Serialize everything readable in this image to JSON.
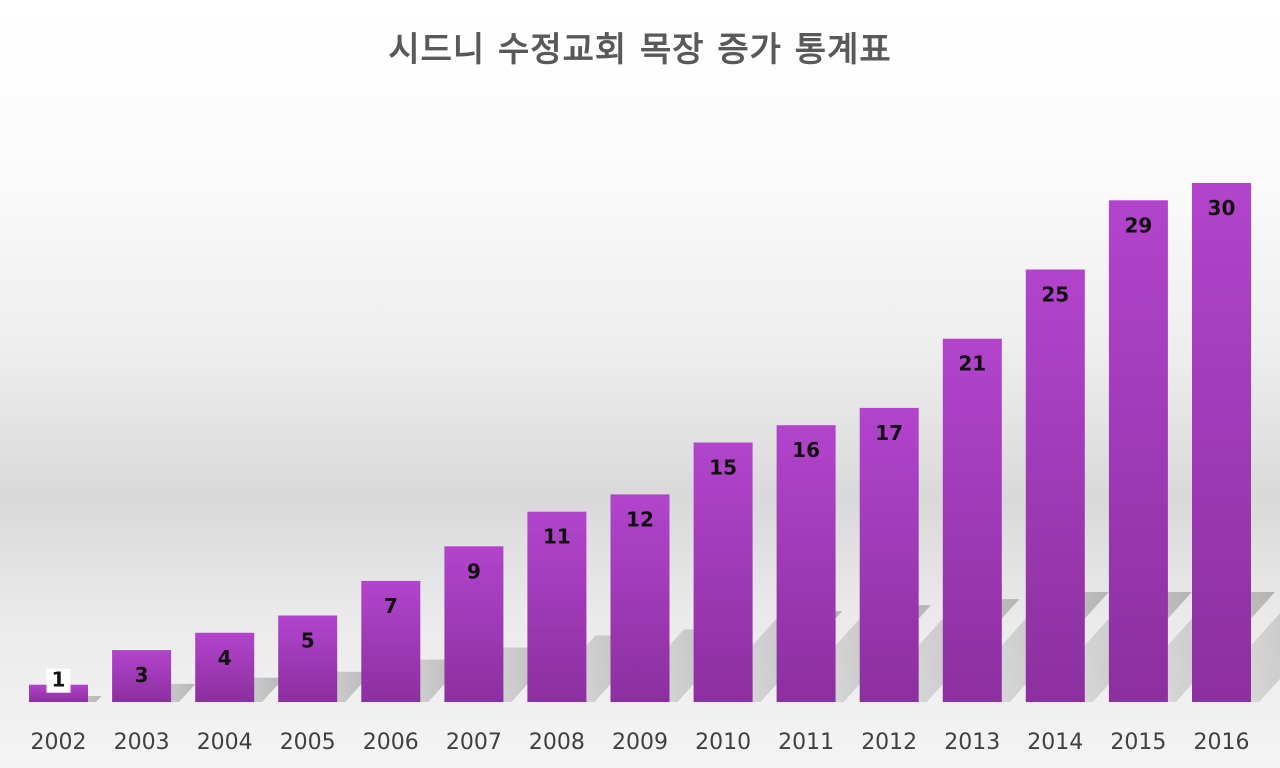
{
  "chart_data": {
    "type": "bar",
    "title": "시드니 수정교회 목장 증가 통계표",
    "categories": [
      "2002",
      "2003",
      "2004",
      "2005",
      "2006",
      "2007",
      "2008",
      "2009",
      "2010",
      "2011",
      "2012",
      "2013",
      "2014",
      "2015",
      "2016"
    ],
    "series": [
      {
        "values": [
          1,
          3,
          4,
          5,
          7,
          9,
          11,
          12,
          15,
          16,
          17,
          21,
          25,
          29,
          30
        ]
      }
    ],
    "ylim": [
      0,
      30
    ],
    "grid": false,
    "legend": "none",
    "data_labels": true,
    "colors": {
      "bar_top": "#b244cc",
      "bar_bottom": "#8c2fa0",
      "label": "#111111",
      "tick": "#404040",
      "title": "#595959"
    }
  }
}
